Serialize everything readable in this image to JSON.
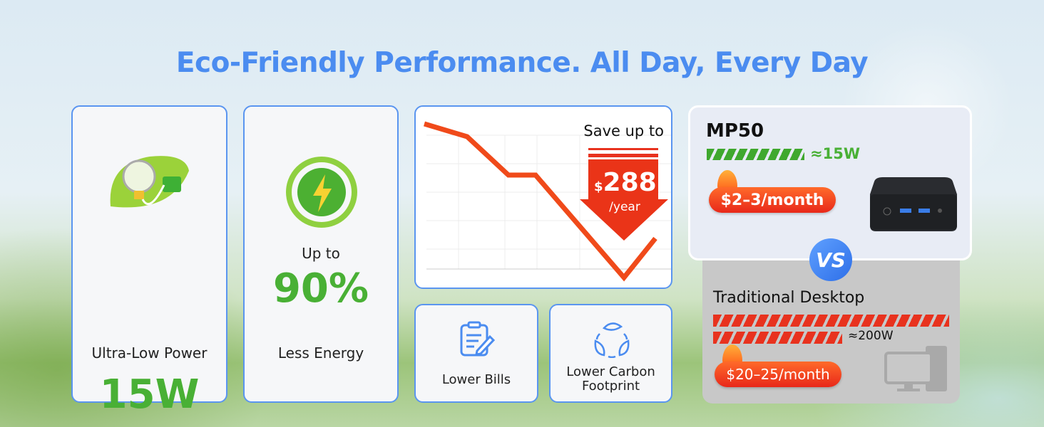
{
  "title": "Eco-Friendly Performance. All Day, Every Day",
  "cards": [
    {
      "icon": "bulb-plug-leaf-icon",
      "value": "15W",
      "label": "Ultra-Low Power"
    },
    {
      "icon": "lightning-energy-icon",
      "prefix": "Up to",
      "value": "90%",
      "label": "Less Energy"
    }
  ],
  "savings": {
    "heading": "Save up to",
    "currency": "$",
    "amount": "288",
    "period": "/year",
    "icon": "down-arrow-icon"
  },
  "benefits": [
    {
      "icon": "clipboard-edit-icon",
      "label": "Lower Bills"
    },
    {
      "icon": "recycle-leaves-icon",
      "label": "Lower Carbon Footprint"
    }
  ],
  "comparison": {
    "product": {
      "name": "MP50",
      "power": "≈15W",
      "cost": "$2–3/month"
    },
    "vs": "VS",
    "other": {
      "name": "Traditional Desktop",
      "power": "≈200W",
      "cost": "$20–25/month"
    }
  },
  "colors": {
    "accent": "#4b8cf0",
    "green": "#49b035",
    "red": "#e8321e"
  }
}
